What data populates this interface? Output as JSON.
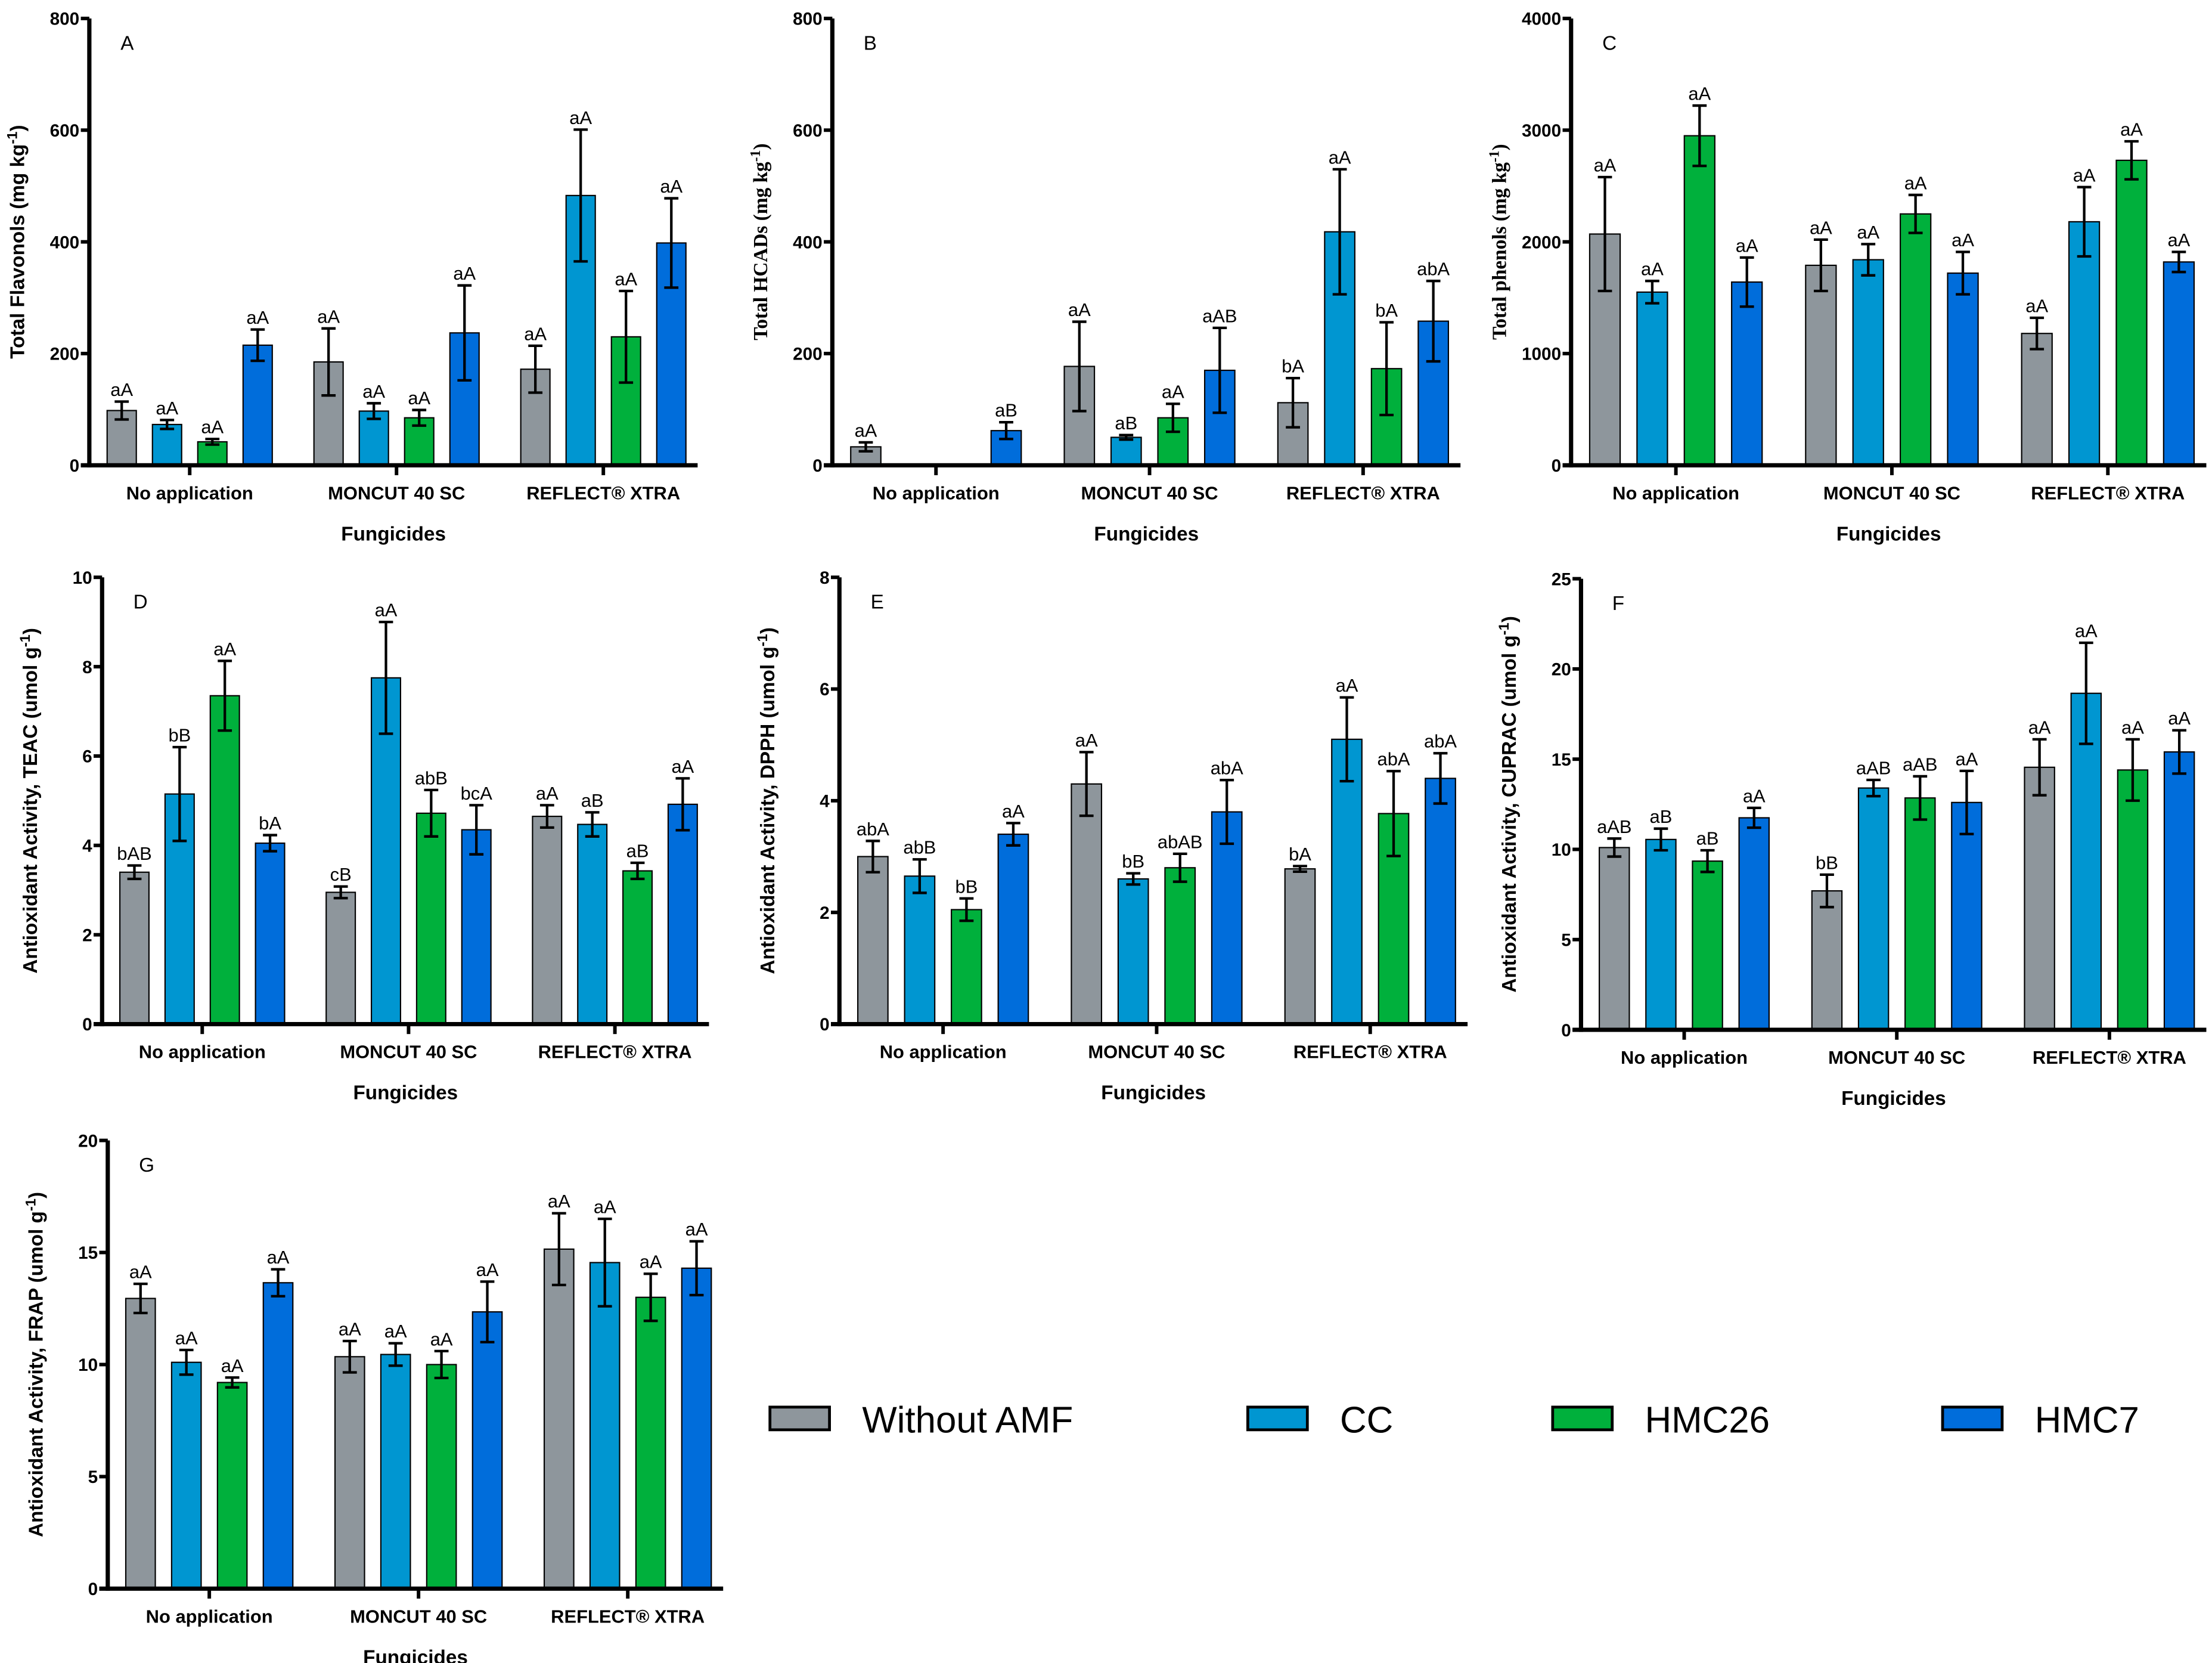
{
  "series_names": [
    "Without AMF",
    "CC",
    "HMC26",
    "HMC7"
  ],
  "series_colors": [
    "#8e969c",
    "#0096d1",
    "#00b03c",
    "#006ddb"
  ],
  "chart_data": [
    {
      "id": "A",
      "type": "bar",
      "panel_label": "A",
      "categories": [
        "No application",
        "MONCUT 40 SC",
        "REFLECT® XTRA"
      ],
      "xlabel": "Fungicides",
      "ylabel": {
        "pre": "Total Flavonols (mg kg",
        "sup": "-1",
        "post": ")"
      },
      "ylim": [
        0,
        800
      ],
      "yticks": [
        0,
        200,
        400,
        600,
        800
      ],
      "series": [
        {
          "name": "Without AMF",
          "values": [
            98,
            185,
            172
          ],
          "errors": [
            16,
            60,
            42
          ],
          "letters": [
            "aA",
            "aA",
            "aA"
          ]
        },
        {
          "name": "CC",
          "values": [
            73,
            97,
            483
          ],
          "errors": [
            8,
            14,
            118
          ],
          "letters": [
            "aA",
            "aA",
            "aA"
          ]
        },
        {
          "name": "HMC26",
          "values": [
            42,
            85,
            230
          ],
          "errors": [
            5,
            14,
            82
          ],
          "letters": [
            "aA",
            "aA",
            "aA"
          ]
        },
        {
          "name": "HMC7",
          "values": [
            215,
            237,
            398
          ],
          "errors": [
            28,
            85,
            80
          ],
          "letters": [
            "aA",
            "aA",
            "aA"
          ]
        }
      ]
    },
    {
      "id": "B",
      "type": "bar",
      "panel_label": "B",
      "categories": [
        "No application",
        "MONCUT 40 SC",
        "REFLECT® XTRA"
      ],
      "xlabel": "Fungicides",
      "ylabel": {
        "pre": "Total HCADs (mg kg",
        "sup": "-1",
        "post": ")"
      },
      "ylim": [
        0,
        800
      ],
      "yticks": [
        0,
        200,
        400,
        600,
        800
      ],
      "series": [
        {
          "name": "Without AMF",
          "values": [
            33,
            177,
            112
          ],
          "errors": [
            8,
            80,
            44
          ],
          "letters": [
            "aA",
            "aA",
            "bA"
          ]
        },
        {
          "name": "CC",
          "values": [
            0,
            50,
            418
          ],
          "errors": [
            0,
            4,
            112
          ],
          "letters": [
            null,
            "aB",
            "aA"
          ]
        },
        {
          "name": "HMC26",
          "values": [
            0,
            85,
            173
          ],
          "errors": [
            0,
            25,
            83
          ],
          "letters": [
            null,
            "aA",
            "bA"
          ]
        },
        {
          "name": "HMC7",
          "values": [
            62,
            170,
            258
          ],
          "errors": [
            15,
            76,
            72
          ],
          "letters": [
            "aB",
            "aAB",
            "abA"
          ]
        }
      ]
    },
    {
      "id": "C",
      "type": "bar",
      "panel_label": "C",
      "categories": [
        "No application",
        "MONCUT 40 SC",
        "REFLECT® XTRA"
      ],
      "xlabel": "Fungicides",
      "ylabel": {
        "pre": "Total phenols (mg kg",
        "sup": "-1",
        "post": ")"
      },
      "ylim": [
        0,
        4000
      ],
      "yticks": [
        0,
        1000,
        2000,
        3000,
        4000
      ],
      "series": [
        {
          "name": "Without AMF",
          "values": [
            2070,
            1790,
            1180
          ],
          "errors": [
            510,
            230,
            140
          ],
          "letters": [
            "aA",
            "aA",
            "aA"
          ]
        },
        {
          "name": "CC",
          "values": [
            1550,
            1840,
            2180
          ],
          "errors": [
            100,
            140,
            310
          ],
          "letters": [
            "aA",
            "aA",
            "aA"
          ]
        },
        {
          "name": "HMC26",
          "values": [
            2950,
            2250,
            2730
          ],
          "errors": [
            270,
            170,
            170
          ],
          "letters": [
            "aA",
            "aA",
            "aA"
          ]
        },
        {
          "name": "HMC7",
          "values": [
            1640,
            1720,
            1820
          ],
          "errors": [
            220,
            190,
            90
          ],
          "letters": [
            "aA",
            "aA",
            "aA"
          ]
        }
      ]
    },
    {
      "id": "D",
      "type": "bar",
      "panel_label": "D",
      "categories": [
        "No application",
        "MONCUT 40 SC",
        "REFLECT® XTRA"
      ],
      "xlabel": "Fungicides",
      "ylabel": {
        "pre": "Antioxidant Activity, TEAC (umol g",
        "sup": "-1",
        "post": ")"
      },
      "ylim": [
        0,
        10
      ],
      "yticks": [
        0,
        2,
        4,
        6,
        8,
        10
      ],
      "series": [
        {
          "name": "Without AMF",
          "values": [
            3.4,
            2.95,
            4.65
          ],
          "errors": [
            0.15,
            0.13,
            0.25
          ],
          "letters": [
            "bAB",
            "cB",
            "aA"
          ]
        },
        {
          "name": "CC",
          "values": [
            5.15,
            7.75,
            4.47
          ],
          "errors": [
            1.05,
            1.25,
            0.27
          ],
          "letters": [
            "bB",
            "aA",
            "aB"
          ]
        },
        {
          "name": "HMC26",
          "values": [
            7.35,
            4.72,
            3.43
          ],
          "errors": [
            0.78,
            0.52,
            0.18
          ],
          "letters": [
            "aA",
            "abB",
            "aB"
          ]
        },
        {
          "name": "HMC7",
          "values": [
            4.05,
            4.35,
            4.92
          ],
          "errors": [
            0.18,
            0.55,
            0.58
          ],
          "letters": [
            "bA",
            "bcA",
            "aA"
          ]
        }
      ]
    },
    {
      "id": "E",
      "type": "bar",
      "panel_label": "E",
      "categories": [
        "No application",
        "MONCUT 40 SC",
        "REFLECT® XTRA"
      ],
      "xlabel": "Fungicides",
      "ylabel": {
        "pre": "Antioxidant Activity, DPPH (umol g",
        "sup": "-1",
        "post": ")"
      },
      "ylim": [
        0,
        8
      ],
      "yticks": [
        0,
        2,
        4,
        6,
        8
      ],
      "series": [
        {
          "name": "Without AMF",
          "values": [
            3.0,
            4.3,
            2.78
          ],
          "errors": [
            0.28,
            0.57,
            0.05
          ],
          "letters": [
            "abA",
            "aA",
            "bA"
          ]
        },
        {
          "name": "CC",
          "values": [
            2.65,
            2.6,
            5.1
          ],
          "errors": [
            0.3,
            0.1,
            0.75
          ],
          "letters": [
            "abB",
            "bB",
            "aA"
          ]
        },
        {
          "name": "HMC26",
          "values": [
            2.05,
            2.8,
            3.77
          ],
          "errors": [
            0.2,
            0.25,
            0.76
          ],
          "letters": [
            "bB",
            "abAB",
            "abA"
          ]
        },
        {
          "name": "HMC7",
          "values": [
            3.4,
            3.8,
            4.4
          ],
          "errors": [
            0.2,
            0.57,
            0.45
          ],
          "letters": [
            "aA",
            "abA",
            "abA"
          ]
        }
      ]
    },
    {
      "id": "F",
      "type": "bar",
      "panel_label": "F",
      "categories": [
        "No application",
        "MONCUT 40 SC",
        "REFLECT® XTRA"
      ],
      "xlabel": "Fungicides",
      "ylabel": {
        "pre": "Antioxidant Activity, CUPRAC (umol g",
        "sup": "-1",
        "post": ")"
      },
      "ylim": [
        0,
        25
      ],
      "yticks": [
        0,
        5,
        10,
        15,
        20,
        25
      ],
      "series": [
        {
          "name": "Without AMF",
          "values": [
            10.1,
            7.7,
            14.55
          ],
          "errors": [
            0.5,
            0.9,
            1.55
          ],
          "letters": [
            "aAB",
            "bB",
            "aA"
          ]
        },
        {
          "name": "CC",
          "values": [
            10.55,
            13.4,
            18.65
          ],
          "errors": [
            0.6,
            0.45,
            2.8
          ],
          "letters": [
            "aB",
            "aAB",
            "aA"
          ]
        },
        {
          "name": "HMC26",
          "values": [
            9.35,
            12.85,
            14.4
          ],
          "errors": [
            0.6,
            1.2,
            1.7
          ],
          "letters": [
            "aB",
            "aAB",
            "aA"
          ]
        },
        {
          "name": "HMC7",
          "values": [
            11.75,
            12.6,
            15.4
          ],
          "errors": [
            0.55,
            1.75,
            1.2
          ],
          "letters": [
            "aA",
            "aA",
            "aA"
          ]
        }
      ]
    },
    {
      "id": "G",
      "type": "bar",
      "panel_label": "G",
      "categories": [
        "No application",
        "MONCUT 40 SC",
        "REFLECT® XTRA"
      ],
      "xlabel": "Fungicides",
      "ylabel": {
        "pre": "Antioxidant Activity, FRAP (umol g",
        "sup": "-1",
        "post": ")"
      },
      "ylim": [
        0,
        20
      ],
      "yticks": [
        0,
        5,
        10,
        15,
        20
      ],
      "series": [
        {
          "name": "Without AMF",
          "values": [
            12.95,
            10.35,
            15.15
          ],
          "errors": [
            0.65,
            0.7,
            1.6
          ],
          "letters": [
            "aA",
            "aA",
            "aA"
          ]
        },
        {
          "name": "CC",
          "values": [
            10.1,
            10.45,
            14.55
          ],
          "errors": [
            0.55,
            0.5,
            1.95
          ],
          "letters": [
            "aA",
            "aA",
            "aA"
          ]
        },
        {
          "name": "HMC26",
          "values": [
            9.2,
            10.0,
            13.0
          ],
          "errors": [
            0.22,
            0.6,
            1.05
          ],
          "letters": [
            "aA",
            "aA",
            "aA"
          ]
        },
        {
          "name": "HMC7",
          "values": [
            13.65,
            12.35,
            14.3
          ],
          "errors": [
            0.6,
            1.35,
            1.2
          ],
          "letters": [
            "aA",
            "aA",
            "aA"
          ]
        }
      ]
    }
  ]
}
